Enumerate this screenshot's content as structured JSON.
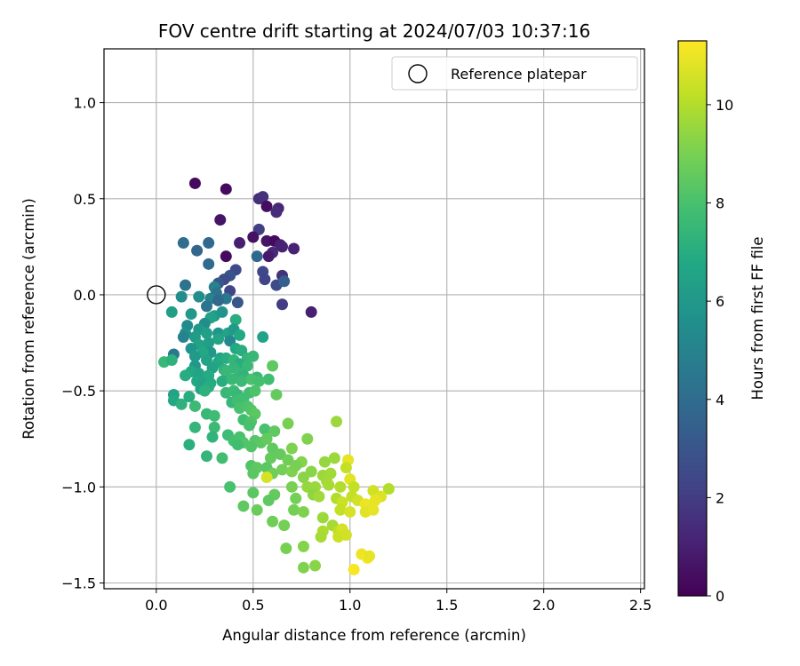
{
  "chart_data": {
    "type": "scatter",
    "title": "FOV centre drift starting at 2024/07/03 10:37:16",
    "xlabel": "Angular distance from reference (arcmin)",
    "ylabel": "Rotation from reference (arcmin)",
    "xlim": [
      -0.27,
      2.52
    ],
    "ylim": [
      -1.53,
      1.28
    ],
    "x_ticks": [
      0.0,
      0.5,
      1.0,
      1.5,
      2.0,
      2.5
    ],
    "x_tick_labels": [
      "0.0",
      "0.5",
      "1.0",
      "1.5",
      "2.0",
      "2.5"
    ],
    "y_ticks": [
      -1.5,
      -1.0,
      -0.5,
      0.0,
      0.5,
      1.0
    ],
    "y_tick_labels": [
      "−1.5",
      "−1.0",
      "−0.5",
      "0.0",
      "0.5",
      "1.0"
    ],
    "grid": true,
    "legend": {
      "position": "top-right",
      "entries": [
        "Reference platepar"
      ]
    },
    "reference_point": {
      "name": "Reference platepar",
      "x": 0.0,
      "y": 0.0
    },
    "colorbar": {
      "label": "Hours from first FF file",
      "colormap": "viridis",
      "range": [
        0,
        11.3
      ],
      "ticks": [
        0,
        2,
        4,
        6,
        8,
        10
      ],
      "tick_labels": [
        "0",
        "2",
        "4",
        "6",
        "8",
        "10"
      ]
    },
    "points": [
      [
        0.2,
        0.58,
        0.3
      ],
      [
        0.36,
        0.55,
        0.3
      ],
      [
        0.53,
        0.5,
        1.5
      ],
      [
        0.55,
        0.51,
        1.6
      ],
      [
        0.57,
        0.46,
        0.4
      ],
      [
        0.63,
        0.45,
        1.2
      ],
      [
        0.62,
        0.43,
        1.4
      ],
      [
        0.33,
        0.39,
        0.6
      ],
      [
        0.53,
        0.34,
        2.1
      ],
      [
        0.5,
        0.3,
        0.5
      ],
      [
        0.57,
        0.28,
        0.6
      ],
      [
        0.61,
        0.28,
        0.3
      ],
      [
        0.43,
        0.27,
        1.0
      ],
      [
        0.27,
        0.27,
        3.8
      ],
      [
        0.14,
        0.27,
        4.0
      ],
      [
        0.64,
        0.26,
        1.0
      ],
      [
        0.65,
        0.25,
        1.1
      ],
      [
        0.71,
        0.24,
        1.1
      ],
      [
        0.6,
        0.22,
        1.3
      ],
      [
        0.58,
        0.2,
        0.8
      ],
      [
        0.21,
        0.23,
        3.7
      ],
      [
        0.36,
        0.2,
        0.3
      ],
      [
        0.52,
        0.2,
        3.8
      ],
      [
        0.27,
        0.16,
        3.9
      ],
      [
        0.41,
        0.13,
        2.6
      ],
      [
        0.55,
        0.12,
        2.4
      ],
      [
        0.38,
        0.1,
        2.9
      ],
      [
        0.35,
        0.08,
        2.6
      ],
      [
        0.65,
        0.1,
        1.6
      ],
      [
        0.32,
        0.06,
        3.1
      ],
      [
        0.56,
        0.08,
        2.3
      ],
      [
        0.62,
        0.05,
        2.6
      ],
      [
        0.15,
        0.05,
        4.3
      ],
      [
        0.3,
        0.04,
        5.0
      ],
      [
        0.38,
        0.02,
        2.4
      ],
      [
        0.31,
        0.01,
        4.3
      ],
      [
        0.66,
        0.07,
        3.4
      ],
      [
        0.13,
        -0.01,
        5.5
      ],
      [
        0.22,
        -0.01,
        5.5
      ],
      [
        0.28,
        -0.02,
        5.0
      ],
      [
        0.36,
        -0.02,
        4.5
      ],
      [
        0.42,
        -0.04,
        3.0
      ],
      [
        0.32,
        -0.03,
        3.8
      ],
      [
        0.26,
        -0.06,
        4.3
      ],
      [
        0.65,
        -0.05,
        2.0
      ],
      [
        0.8,
        -0.09,
        1.0
      ],
      [
        0.08,
        -0.09,
        6.3
      ],
      [
        0.18,
        -0.1,
        6.0
      ],
      [
        0.3,
        -0.11,
        6.2
      ],
      [
        0.34,
        -0.09,
        5.8
      ],
      [
        0.41,
        -0.13,
        7.0
      ],
      [
        0.28,
        -0.12,
        6.5
      ],
      [
        0.25,
        -0.15,
        5.5
      ],
      [
        0.22,
        -0.18,
        6.0
      ],
      [
        0.16,
        -0.16,
        5.4
      ],
      [
        0.15,
        -0.2,
        5.6
      ],
      [
        0.14,
        -0.22,
        5.0
      ],
      [
        0.2,
        -0.22,
        6.2
      ],
      [
        0.26,
        -0.2,
        6.4
      ],
      [
        0.32,
        -0.2,
        5.8
      ],
      [
        0.37,
        -0.2,
        6.5
      ],
      [
        0.4,
        -0.18,
        6.1
      ],
      [
        0.43,
        -0.21,
        6.8
      ],
      [
        0.38,
        -0.24,
        5.3
      ],
      [
        0.32,
        -0.23,
        6.6
      ],
      [
        0.27,
        -0.25,
        6.4
      ],
      [
        0.22,
        -0.26,
        6.5
      ],
      [
        0.18,
        -0.28,
        5.8
      ],
      [
        0.28,
        -0.3,
        6.0
      ],
      [
        0.24,
        -0.3,
        6.8
      ],
      [
        0.55,
        -0.22,
        6.5
      ],
      [
        0.41,
        -0.28,
        6.8
      ],
      [
        0.44,
        -0.29,
        7.0
      ],
      [
        0.33,
        -0.33,
        6.5
      ],
      [
        0.09,
        -0.31,
        4.5
      ],
      [
        0.2,
        -0.32,
        6.1
      ],
      [
        0.26,
        -0.34,
        6.5
      ],
      [
        0.32,
        -0.35,
        6.8
      ],
      [
        0.36,
        -0.33,
        7.0
      ],
      [
        0.4,
        -0.34,
        7.4
      ],
      [
        0.47,
        -0.33,
        7.4
      ],
      [
        0.5,
        -0.32,
        7.5
      ],
      [
        0.43,
        -0.36,
        7.0
      ],
      [
        0.04,
        -0.35,
        7.5
      ],
      [
        0.08,
        -0.34,
        7.2
      ],
      [
        0.2,
        -0.37,
        6.0
      ],
      [
        0.29,
        -0.38,
        6.5
      ],
      [
        0.35,
        -0.39,
        7.2
      ],
      [
        0.4,
        -0.38,
        7.4
      ],
      [
        0.47,
        -0.37,
        7.5
      ],
      [
        0.6,
        -0.37,
        8.5
      ],
      [
        0.18,
        -0.4,
        6.8
      ],
      [
        0.22,
        -0.41,
        6.5
      ],
      [
        0.27,
        -0.42,
        6.9
      ],
      [
        0.15,
        -0.42,
        7.0
      ],
      [
        0.36,
        -0.4,
        7.5
      ],
      [
        0.43,
        -0.41,
        7.5
      ],
      [
        0.45,
        -0.42,
        7.3
      ],
      [
        0.52,
        -0.43,
        7.5
      ],
      [
        0.58,
        -0.44,
        7.8
      ],
      [
        0.21,
        -0.45,
        6.8
      ],
      [
        0.24,
        -0.46,
        6.5
      ],
      [
        0.28,
        -0.46,
        6.9
      ],
      [
        0.34,
        -0.45,
        7.0
      ],
      [
        0.39,
        -0.44,
        7.5
      ],
      [
        0.44,
        -0.45,
        7.6
      ],
      [
        0.49,
        -0.44,
        8.0
      ],
      [
        0.53,
        -0.45,
        7.9
      ],
      [
        0.23,
        -0.49,
        6.6
      ],
      [
        0.27,
        -0.48,
        7.0
      ],
      [
        0.25,
        -0.5,
        7.2
      ],
      [
        0.09,
        -0.52,
        6.5
      ],
      [
        0.17,
        -0.53,
        7.0
      ],
      [
        0.36,
        -0.51,
        7.5
      ],
      [
        0.4,
        -0.5,
        7.6
      ],
      [
        0.42,
        -0.52,
        7.5
      ],
      [
        0.48,
        -0.51,
        7.8
      ],
      [
        0.51,
        -0.5,
        8.1
      ],
      [
        0.62,
        -0.52,
        8.6
      ],
      [
        0.09,
        -0.55,
        6.8
      ],
      [
        0.13,
        -0.57,
        7.2
      ],
      [
        0.2,
        -0.58,
        7.6
      ],
      [
        0.39,
        -0.56,
        7.5
      ],
      [
        0.42,
        -0.55,
        7.8
      ],
      [
        0.45,
        -0.54,
        7.8
      ],
      [
        0.43,
        -0.59,
        8.0
      ],
      [
        0.47,
        -0.58,
        8.1
      ],
      [
        0.49,
        -0.6,
        8.2
      ],
      [
        0.51,
        -0.62,
        8.4
      ],
      [
        0.26,
        -0.62,
        7.5
      ],
      [
        0.3,
        -0.63,
        7.7
      ],
      [
        0.45,
        -0.65,
        7.8
      ],
      [
        0.49,
        -0.66,
        8.2
      ],
      [
        0.48,
        -0.68,
        8.0
      ],
      [
        0.2,
        -0.69,
        7.4
      ],
      [
        0.3,
        -0.69,
        7.6
      ],
      [
        0.68,
        -0.67,
        9.0
      ],
      [
        0.93,
        -0.66,
        9.6
      ],
      [
        0.56,
        -0.7,
        8.0
      ],
      [
        0.61,
        -0.71,
        8.5
      ],
      [
        0.29,
        -0.74,
        7.3
      ],
      [
        0.37,
        -0.73,
        7.7
      ],
      [
        0.4,
        -0.76,
        7.9
      ],
      [
        0.43,
        -0.74,
        8.0
      ],
      [
        0.45,
        -0.77,
        8.2
      ],
      [
        0.51,
        -0.76,
        8.3
      ],
      [
        0.54,
        -0.77,
        8.4
      ],
      [
        0.57,
        -0.75,
        8.6
      ],
      [
        0.78,
        -0.75,
        9.1
      ],
      [
        0.17,
        -0.78,
        7.1
      ],
      [
        0.42,
        -0.78,
        7.8
      ],
      [
        0.49,
        -0.79,
        8.2
      ],
      [
        0.6,
        -0.8,
        8.5
      ],
      [
        0.64,
        -0.83,
        8.6
      ],
      [
        0.7,
        -0.8,
        9.1
      ],
      [
        0.26,
        -0.84,
        7.4
      ],
      [
        0.34,
        -0.85,
        7.8
      ],
      [
        0.59,
        -0.85,
        8.6
      ],
      [
        0.68,
        -0.86,
        8.8
      ],
      [
        0.75,
        -0.87,
        9.2
      ],
      [
        0.87,
        -0.87,
        9.5
      ],
      [
        0.92,
        -0.85,
        9.6
      ],
      [
        0.99,
        -0.86,
        10.9
      ],
      [
        0.49,
        -0.89,
        8.2
      ],
      [
        0.52,
        -0.9,
        8.5
      ],
      [
        0.57,
        -0.9,
        8.4
      ],
      [
        0.5,
        -0.93,
        8.4
      ],
      [
        0.6,
        -0.93,
        8.8
      ],
      [
        0.65,
        -0.91,
        8.9
      ],
      [
        0.7,
        -0.92,
        9.1
      ],
      [
        0.72,
        -0.89,
        9.0
      ],
      [
        0.8,
        -0.92,
        9.3
      ],
      [
        0.86,
        -0.94,
        9.6
      ],
      [
        0.9,
        -0.93,
        9.7
      ],
      [
        0.98,
        -0.9,
        10.3
      ],
      [
        0.76,
        -0.95,
        9.3
      ],
      [
        0.88,
        -0.97,
        9.7
      ],
      [
        0.57,
        -0.95,
        10.6
      ],
      [
        1.0,
        -0.96,
        10.8
      ],
      [
        0.38,
        -1.0,
        8.0
      ],
      [
        0.7,
        -1.0,
        9.0
      ],
      [
        0.78,
        -1.0,
        9.5
      ],
      [
        0.82,
        -1.0,
        9.6
      ],
      [
        0.89,
        -0.99,
        9.8
      ],
      [
        0.95,
        -1.0,
        10.0
      ],
      [
        1.02,
        -1.0,
        10.3
      ],
      [
        1.12,
        -1.02,
        10.5
      ],
      [
        1.2,
        -1.01,
        10.0
      ],
      [
        0.5,
        -1.03,
        8.4
      ],
      [
        0.61,
        -1.04,
        8.6
      ],
      [
        0.81,
        -1.04,
        9.4
      ],
      [
        0.84,
        -1.05,
        9.7
      ],
      [
        0.93,
        -1.06,
        10.0
      ],
      [
        1.01,
        -1.05,
        10.3
      ],
      [
        1.04,
        -1.07,
        10.5
      ],
      [
        1.16,
        -1.05,
        10.7
      ],
      [
        0.58,
        -1.07,
        8.5
      ],
      [
        0.72,
        -1.06,
        8.9
      ],
      [
        0.96,
        -1.08,
        10.4
      ],
      [
        1.08,
        -1.09,
        11.0
      ],
      [
        1.13,
        -1.07,
        10.9
      ],
      [
        0.45,
        -1.1,
        8.5
      ],
      [
        0.52,
        -1.12,
        8.7
      ],
      [
        0.71,
        -1.12,
        8.9
      ],
      [
        0.76,
        -1.13,
        9.1
      ],
      [
        0.95,
        -1.12,
        10.3
      ],
      [
        1.0,
        -1.13,
        10.6
      ],
      [
        1.08,
        -1.13,
        10.8
      ],
      [
        1.12,
        -1.12,
        10.9
      ],
      [
        0.86,
        -1.16,
        9.6
      ],
      [
        0.6,
        -1.18,
        8.8
      ],
      [
        0.66,
        -1.2,
        8.9
      ],
      [
        0.91,
        -1.2,
        9.8
      ],
      [
        0.86,
        -1.23,
        9.9
      ],
      [
        0.94,
        -1.23,
        10.2
      ],
      [
        0.96,
        -1.22,
        10.6
      ],
      [
        0.94,
        -1.26,
        10.4
      ],
      [
        0.98,
        -1.25,
        10.5
      ],
      [
        0.85,
        -1.26,
        9.8
      ],
      [
        0.76,
        -1.31,
        9.2
      ],
      [
        0.67,
        -1.32,
        9.0
      ],
      [
        1.06,
        -1.35,
        11.0
      ],
      [
        1.09,
        -1.37,
        11.1
      ],
      [
        1.1,
        -1.36,
        10.9
      ],
      [
        0.76,
        -1.42,
        9.1
      ],
      [
        0.82,
        -1.41,
        9.3
      ],
      [
        1.02,
        -1.43,
        11.2
      ]
    ]
  }
}
